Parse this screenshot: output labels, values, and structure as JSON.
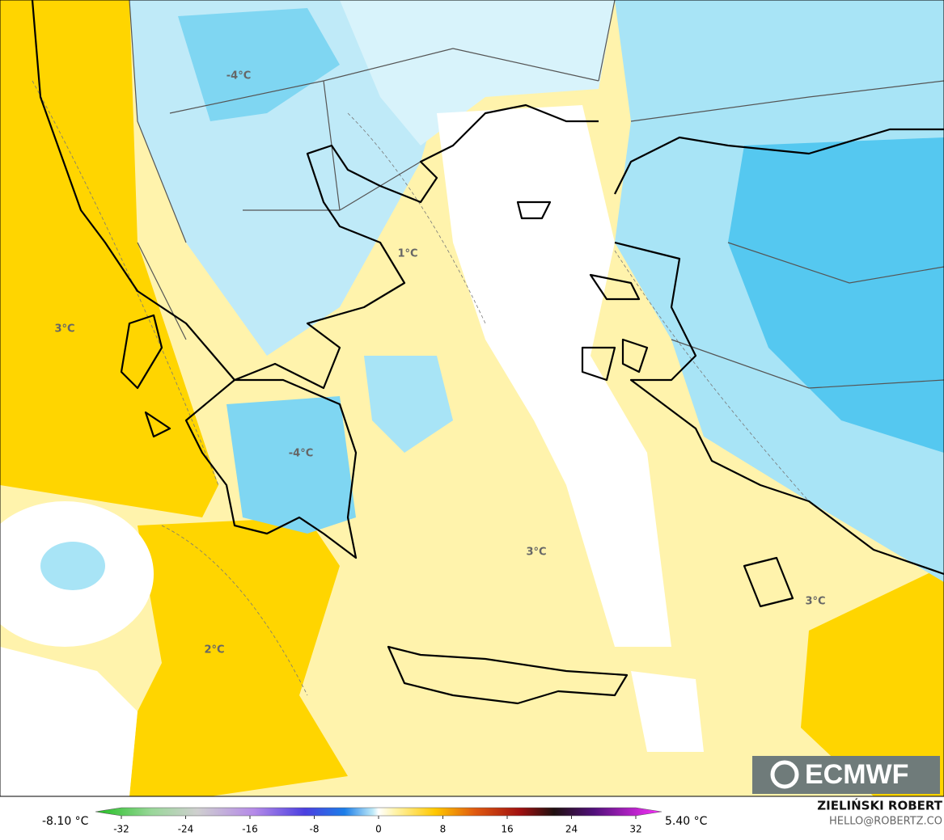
{
  "map": {
    "labels": [
      "-4°C",
      "1°C",
      "3°C",
      "-4°C",
      "3°C",
      "3°C",
      "2°C"
    ]
  },
  "colorbar": {
    "min_label": "-8.10 °C",
    "max_label": "5.40 °C",
    "ticks": [
      -32,
      -24,
      -16,
      -8,
      0,
      8,
      16,
      24,
      32
    ]
  },
  "logo": "ECMWF",
  "credit": {
    "name": "ZIELIŃSKI ROBERT",
    "email": "HELLO@ROBERTZ.CO"
  }
}
